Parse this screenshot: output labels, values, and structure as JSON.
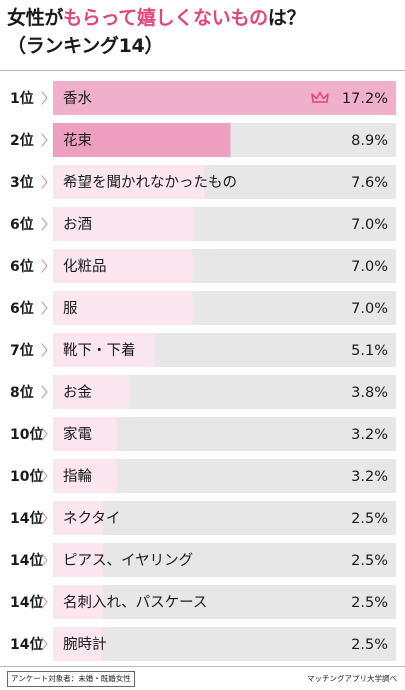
{
  "title": {
    "line1_pre": "女性が",
    "line1_highlight": "もらって嬉しくないもの",
    "line1_post": "は？",
    "line2": "（ランキング14）"
  },
  "footer": {
    "note": "アンケート対象者：未婚・既婚女性",
    "source": "マッチングアプリ大学調べ"
  },
  "chart_data": {
    "type": "bar",
    "orientation": "horizontal",
    "value_unit": "%",
    "xlim": [
      0,
      17.2
    ],
    "grid": false,
    "colors": {
      "top_bar": "#f0afca",
      "second_bar": "#ee9fc0",
      "other_bars": "#fbe6ef",
      "track": "#e7e7e7",
      "crown": "#e0457b",
      "chevron": "#c9a3b4"
    },
    "top_marker_icon": "crown-icon",
    "rank_suffix": "位",
    "categories": [
      "香水",
      "花束",
      "希望を聞かれなかったもの",
      "お酒",
      "化粧品",
      "服",
      "靴下・下着",
      "お金",
      "家電",
      "指輪",
      "ネクタイ",
      "ピアス、イヤリング",
      "名刺入れ、パスケース",
      "腕時計"
    ],
    "ranks": [
      1,
      2,
      3,
      6,
      6,
      6,
      7,
      8,
      10,
      10,
      14,
      14,
      14,
      14
    ],
    "values": [
      17.2,
      8.9,
      7.6,
      7.0,
      7.0,
      7.0,
      5.1,
      3.8,
      3.2,
      3.2,
      2.5,
      2.5,
      2.5,
      2.5
    ]
  }
}
